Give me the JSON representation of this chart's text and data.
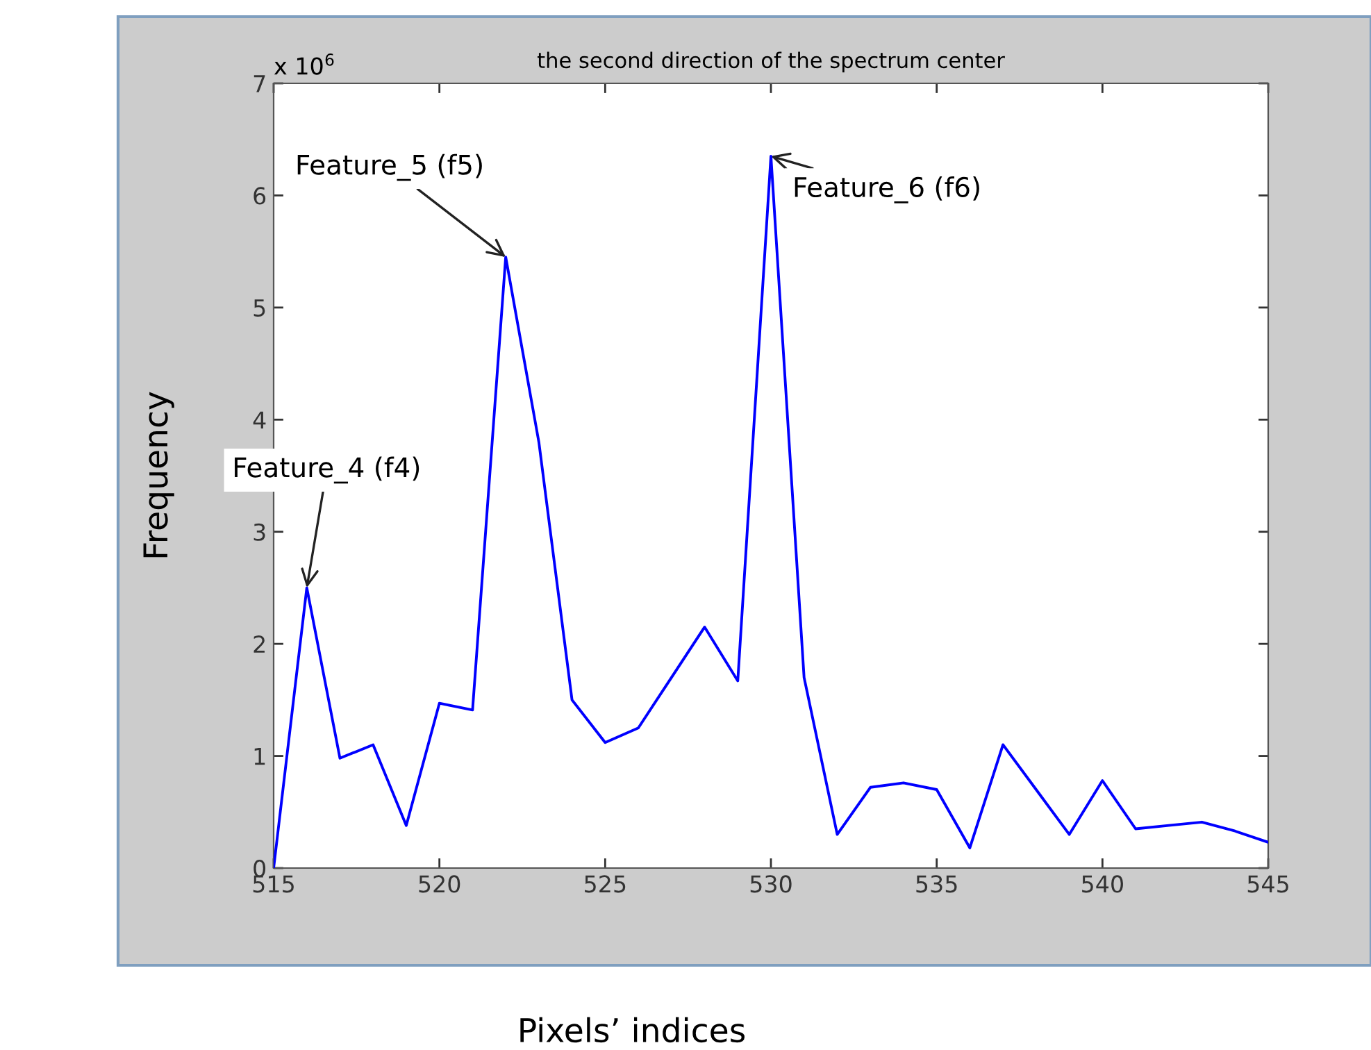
{
  "chart_data": {
    "type": "line",
    "title": "the second direction of the spectrum center",
    "xlabel": "Pixels’ indices",
    "ylabel": "Frequency",
    "x": [
      515,
      516,
      517,
      518,
      519,
      520,
      521,
      522,
      523,
      524,
      525,
      526,
      527,
      528,
      529,
      530,
      531,
      532,
      533,
      534,
      535,
      536,
      537,
      538,
      539,
      540,
      541,
      542,
      543,
      544,
      545
    ],
    "series": [
      {
        "color": "#0000ff",
        "values": [
          0,
          2.5,
          0.98,
          1.1,
          0.38,
          1.47,
          1.41,
          5.45,
          3.8,
          1.5,
          1.12,
          1.25,
          1.7,
          2.15,
          1.67,
          6.35,
          1.7,
          0.3,
          0.72,
          0.76,
          0.7,
          0.18,
          1.1,
          0.7,
          0.3,
          0.78,
          0.35,
          0.38,
          0.41,
          0.33,
          0.23
        ]
      }
    ],
    "xlim": [
      515,
      545
    ],
    "xticks": [
      515,
      520,
      525,
      530,
      535,
      540,
      545
    ],
    "ylim": [
      0,
      7
    ],
    "yticks": [
      0,
      1,
      2,
      3,
      4,
      5,
      6,
      7
    ],
    "annotations": [
      "x 10$^{6}$",
      {
        "text": "Feature_4 (f4)",
        "x": 516,
        "y": 2.5
      },
      {
        "text": "Feature_5 (f5)",
        "x": 522,
        "y": 5.45
      },
      {
        "text": "Feature_6 (f6)",
        "x": 530,
        "y": 6.35
      }
    ],
    "grid": false,
    "marker": "none",
    "line_style": "solid"
  }
}
